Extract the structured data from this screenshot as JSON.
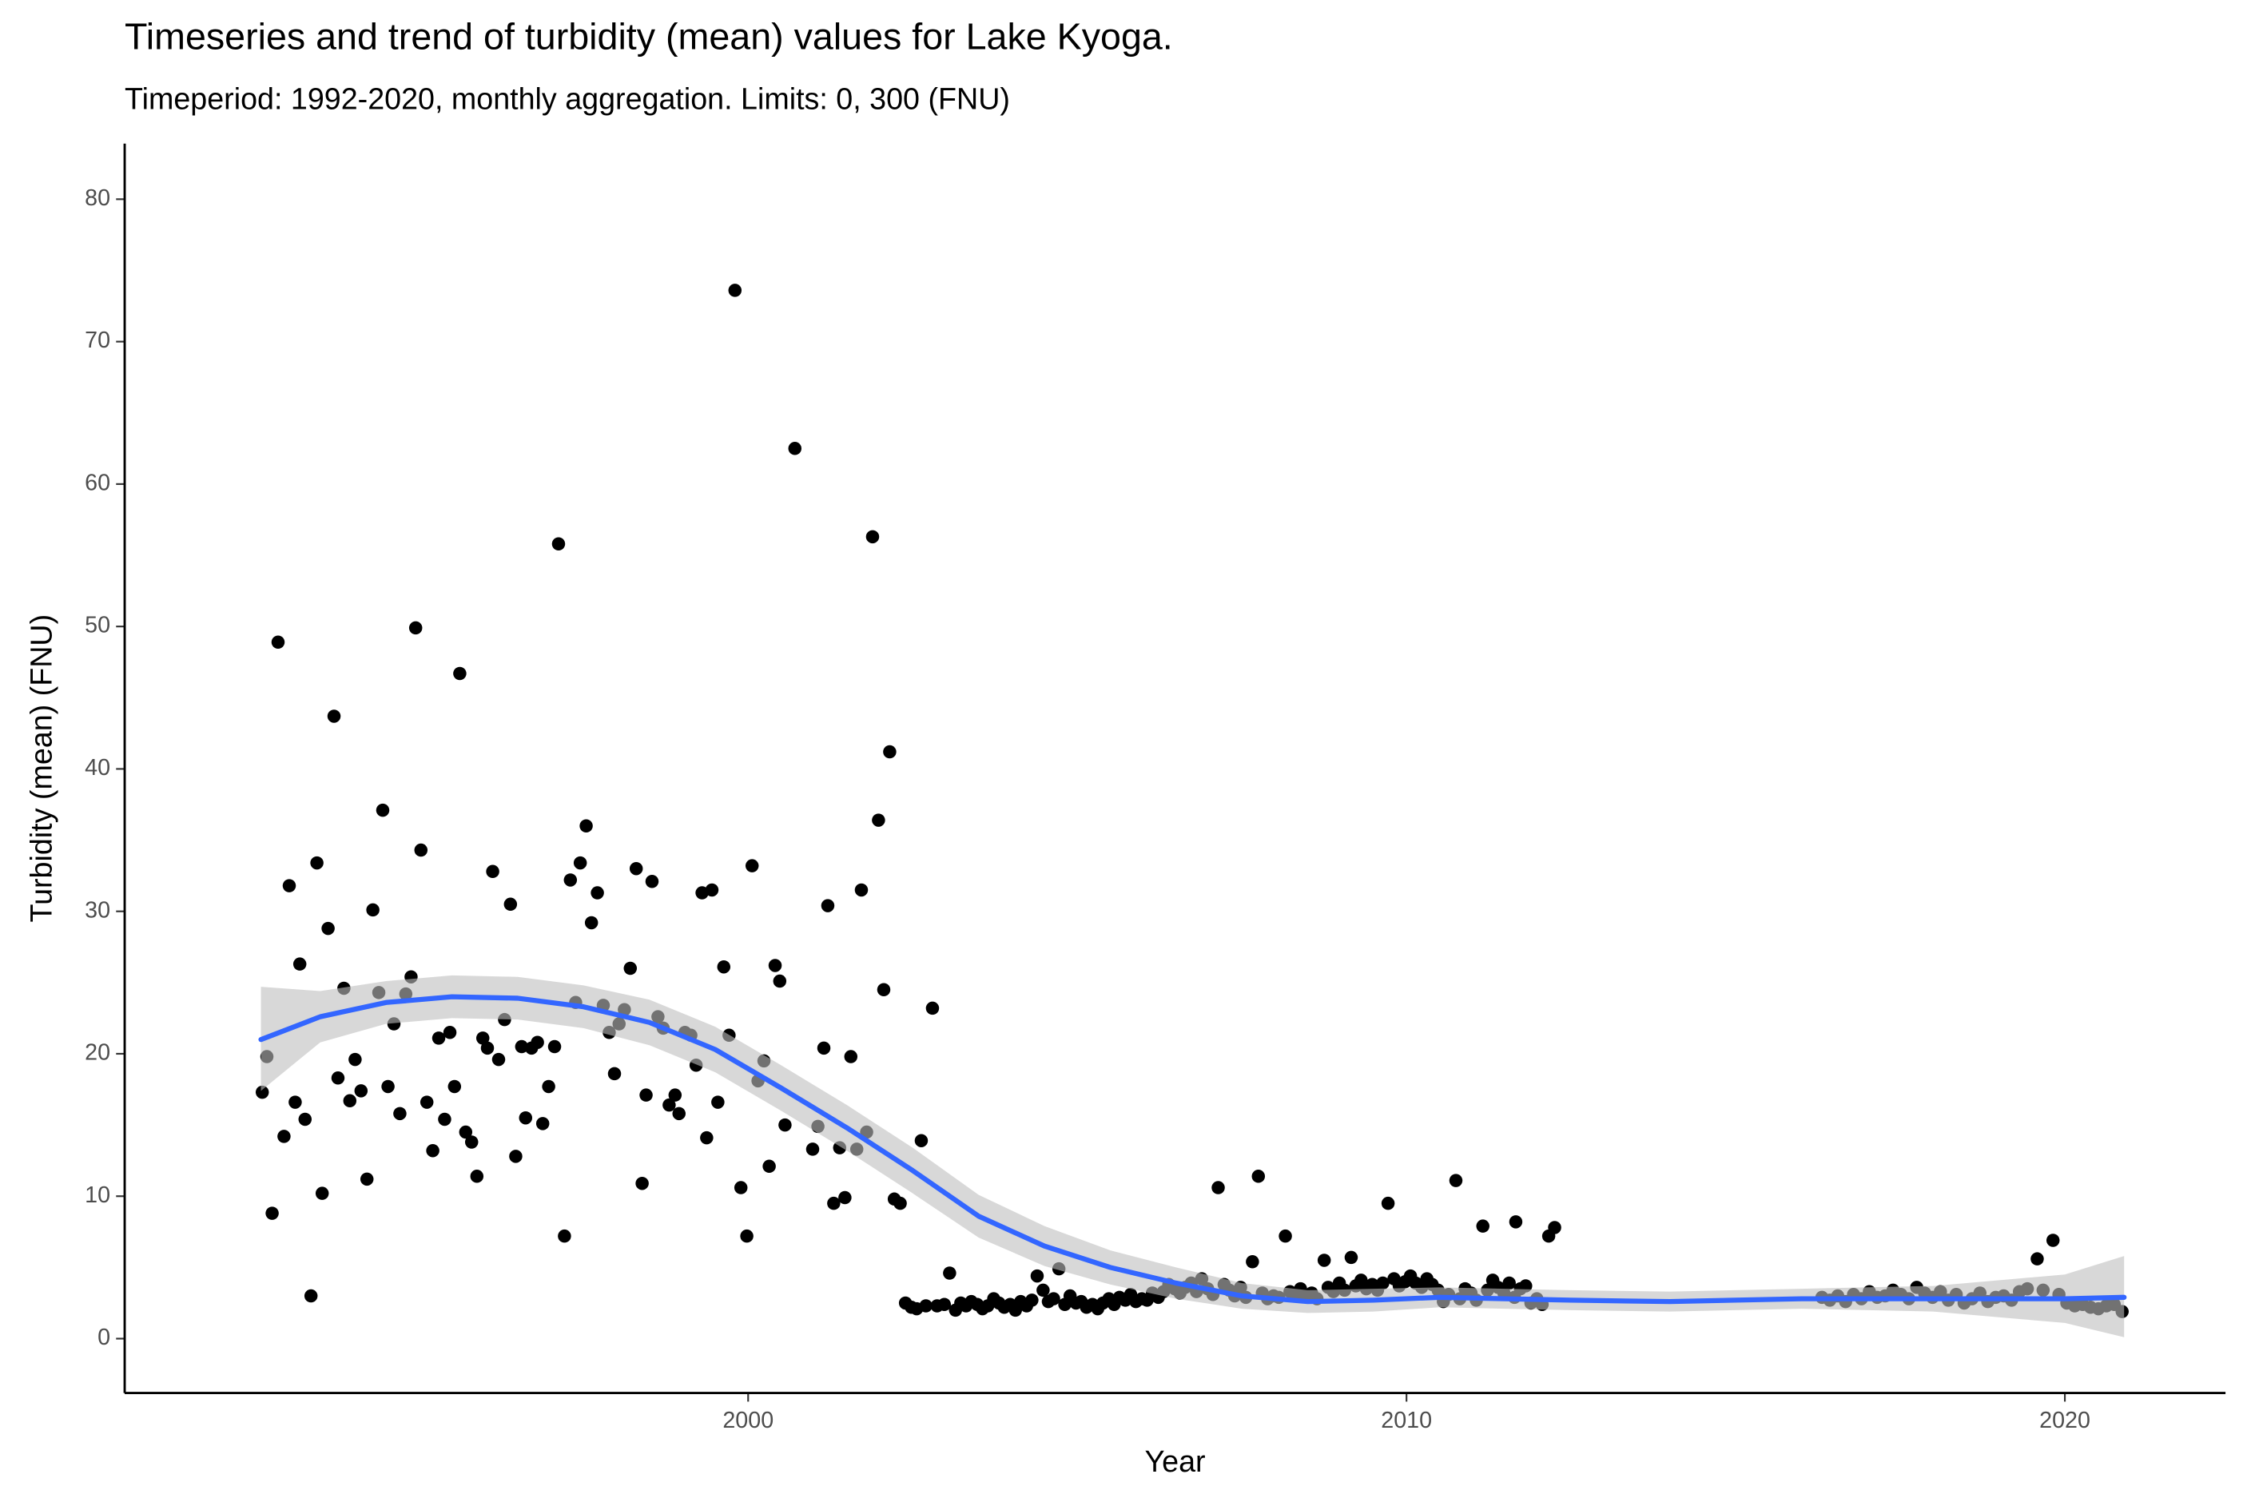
{
  "chart_data": {
    "type": "scatter",
    "title": "Timeseries and trend of turbidity (mean) values for Lake Kyoga.",
    "subtitle": "Timeperiod: 1992-2020, monthly aggregation. Limits: 0, 300 (FNU)",
    "x_label": "Year",
    "y_label": "Turbidity (mean) (FNU)",
    "xlim": [
      1990.53,
      2022.44
    ],
    "ylim": [
      -3.82,
      83.9
    ],
    "xticks": [
      2000,
      2010,
      2020
    ],
    "yticks": [
      0,
      10,
      20,
      30,
      40,
      50,
      60,
      70,
      80
    ],
    "grid": false,
    "series": [
      {
        "color": "#000000",
        "x": [
          1992.62,
          1992.69,
          1992.77,
          1992.86,
          1992.95,
          1993.03,
          1993.12,
          1993.19,
          1993.27,
          1993.36,
          1993.45,
          1993.53,
          1993.62,
          1993.71,
          1993.77,
          1993.86,
          1993.95,
          1994.03,
          1994.12,
          1994.21,
          1994.3,
          1994.39,
          1994.45,
          1994.53,
          1994.62,
          1994.71,
          1994.8,
          1994.88,
          1994.95,
          1995.03,
          1995.12,
          1995.21,
          1995.3,
          1995.39,
          1995.47,
          1995.54,
          1995.62,
          1995.71,
          1995.8,
          1995.88,
          1995.97,
          1996.04,
          1996.12,
          1996.21,
          1996.3,
          1996.39,
          1996.47,
          1996.56,
          1996.62,
          1996.71,
          1996.8,
          1996.88,
          1996.97,
          1997.06,
          1997.12,
          1997.21,
          1997.3,
          1997.38,
          1997.45,
          1997.54,
          1997.62,
          1997.71,
          1997.8,
          1997.89,
          1997.97,
          1998.04,
          1998.12,
          1998.21,
          1998.3,
          1998.39,
          1998.45,
          1998.54,
          1998.63,
          1998.71,
          1998.8,
          1998.89,
          1998.95,
          1999.04,
          1999.13,
          1999.21,
          1999.3,
          1999.37,
          1999.45,
          1999.54,
          1999.63,
          1999.71,
          1999.8,
          1999.89,
          1999.98,
          2000.06,
          2000.15,
          2000.24,
          2000.32,
          2000.41,
          2000.48,
          2000.56,
          2000.71,
          2000.98,
          2001.06,
          2001.15,
          2001.21,
          2001.3,
          2001.39,
          2001.47,
          2001.56,
          2001.65,
          2001.72,
          2001.8,
          2001.89,
          2001.98,
          2002.06,
          2002.15,
          2002.22,
          2002.31,
          2002.39,
          2002.48,
          2002.56,
          2002.63,
          2002.7,
          2002.8,
          2002.87,
          2002.98,
          2003.06,
          2003.15
        ],
        "values": [
          17.3,
          19.8,
          8.8,
          48.9,
          14.2,
          31.8,
          16.6,
          26.3,
          15.4,
          3.0,
          33.4,
          10.2,
          28.8,
          43.7,
          18.3,
          24.6,
          16.7,
          19.6,
          17.4,
          11.2,
          30.1,
          24.3,
          37.1,
          17.7,
          22.1,
          15.8,
          24.2,
          25.4,
          49.9,
          34.3,
          16.6,
          13.2,
          21.1,
          15.4,
          21.5,
          17.7,
          46.7,
          14.5,
          13.8,
          11.4,
          21.1,
          20.4,
          32.8,
          19.6,
          22.4,
          30.5,
          12.8,
          20.5,
          15.5,
          20.4,
          20.8,
          15.1,
          17.7,
          20.5,
          55.8,
          7.2,
          32.2,
          23.6,
          33.4,
          36.0,
          29.2,
          31.3,
          23.4,
          21.5,
          18.6,
          22.1,
          23.1,
          26.0,
          33.0,
          10.9,
          17.1,
          32.1,
          22.6,
          21.8,
          16.4,
          17.1,
          15.8,
          21.5,
          21.3,
          19.2,
          31.3,
          14.1,
          31.5,
          16.6,
          26.1,
          21.3,
          73.6,
          10.6,
          7.2,
          33.2,
          18.1,
          19.5,
          12.1,
          26.2,
          25.1,
          15.0,
          62.5,
          13.3,
          14.9,
          20.4,
          30.4,
          9.5,
          13.4,
          9.9,
          19.8,
          13.3,
          31.5,
          14.5,
          56.3,
          36.4,
          24.5,
          41.2,
          9.8,
          9.5,
          2.5,
          2.2,
          2.1,
          13.9,
          2.3,
          23.2,
          2.3,
          2.4,
          4.6,
          2.0
        ]
      },
      {
        "color": "#000000",
        "x": [
          2003.23,
          2003.31,
          2003.39,
          2003.48,
          2003.56,
          2003.64,
          2003.73,
          2003.81,
          2003.89,
          2003.98,
          2004.06,
          2004.14,
          2004.23,
          2004.31,
          2004.48,
          2004.56,
          2004.64,
          2004.81,
          2004.89,
          2004.98,
          2005.06,
          2005.14,
          2005.23,
          2005.31,
          2005.39,
          2005.48,
          2005.56,
          2005.64,
          2005.73,
          2005.81,
          2005.89,
          2005.98,
          2006.06,
          2006.14,
          2006.23,
          2006.31,
          2006.39,
          2006.48,
          2006.56,
          2006.64,
          2006.73,
          2006.81,
          2006.89,
          2006.98,
          2007.06,
          2007.23,
          2007.31,
          2007.39,
          2007.48,
          2007.56,
          2007.81,
          2007.89,
          2007.98,
          2008.06,
          2008.23,
          2008.31,
          2008.39,
          2008.48,
          2008.56,
          2008.64,
          2008.81,
          2008.89,
          2008.98,
          2009.06,
          2009.23,
          2009.31,
          2009.39,
          2009.48,
          2009.56,
          2009.64,
          2009.81,
          2009.89,
          2009.98,
          2010.06,
          2010.14,
          2010.23,
          2010.31,
          2010.39,
          2010.48,
          2010.56,
          2010.64,
          2010.81,
          2010.89,
          2010.98,
          2011.06,
          2011.23,
          2011.31,
          2011.39,
          2011.48,
          2011.56,
          2011.64,
          2011.73,
          2011.81,
          2011.89,
          2011.98,
          2012.06
        ],
        "values": [
          2.5,
          2.3,
          2.6,
          2.4,
          2.1,
          2.3,
          2.8,
          2.5,
          2.2,
          2.4,
          2.0,
          2.6,
          2.3,
          2.7,
          3.4,
          2.6,
          2.8,
          2.4,
          3.0,
          2.5,
          2.6,
          2.2,
          2.4,
          2.1,
          2.5,
          2.8,
          2.4,
          2.9,
          2.7,
          3.1,
          2.6,
          2.8,
          2.7,
          3.2,
          2.9,
          3.3,
          3.8,
          3.5,
          3.2,
          3.6,
          3.9,
          3.3,
          4.2,
          3.5,
          3.1,
          3.8,
          3.4,
          3.0,
          3.6,
          2.9,
          3.2,
          2.8,
          3.0,
          2.9,
          3.3,
          3.1,
          3.5,
          3.0,
          3.2,
          2.8,
          3.6,
          3.3,
          3.9,
          3.4,
          3.7,
          4.1,
          3.5,
          3.8,
          3.4,
          3.9,
          4.2,
          3.7,
          4.0,
          4.4,
          3.9,
          3.6,
          4.2,
          3.8,
          3.4,
          2.6,
          3.1,
          2.8,
          3.5,
          3.2,
          2.7,
          3.4,
          4.1,
          3.6,
          3.2,
          3.9,
          2.9,
          3.5,
          3.7,
          2.5,
          2.8,
          2.4
        ]
      },
      {
        "color": "#000000",
        "x": [
          2004.39,
          2004.72,
          2007.14,
          2007.66,
          2007.75,
          2008.16,
          2008.75,
          2009.16,
          2009.72,
          2010.75,
          2011.16,
          2011.66,
          2012.16,
          2012.25,
          2019.58,
          2019.82
        ],
        "values": [
          4.4,
          4.9,
          10.6,
          5.4,
          11.4,
          7.2,
          5.5,
          5.7,
          9.5,
          11.1,
          7.9,
          8.2,
          7.2,
          7.8,
          5.6,
          6.9
        ]
      },
      {
        "color": "#000000",
        "x": [
          2016.31,
          2016.43,
          2016.55,
          2016.67,
          2016.79,
          2016.91,
          2017.03,
          2017.15,
          2017.27,
          2017.39,
          2017.51,
          2017.63,
          2017.75,
          2017.87,
          2017.99,
          2018.11,
          2018.23,
          2018.35,
          2018.47,
          2018.59,
          2018.71,
          2018.83,
          2018.95,
          2019.07,
          2019.19,
          2019.31,
          2019.43,
          2019.67,
          2019.91,
          2020.03,
          2020.15,
          2020.27,
          2020.39,
          2020.51,
          2020.63,
          2020.75,
          2020.87
        ],
        "values": [
          2.9,
          2.7,
          3.0,
          2.6,
          3.1,
          2.8,
          3.3,
          2.9,
          3.0,
          3.4,
          3.1,
          2.8,
          3.6,
          3.2,
          2.9,
          3.3,
          2.7,
          3.1,
          2.5,
          2.8,
          3.2,
          2.6,
          2.9,
          3.0,
          2.7,
          3.3,
          3.5,
          3.4,
          3.1,
          2.5,
          2.3,
          2.4,
          2.2,
          2.1,
          2.3,
          2.4,
          1.9
        ]
      }
    ],
    "trend": {
      "color": "#3366ff",
      "band_color": "#bebebe",
      "x": [
        1992.6,
        1993.5,
        1994.5,
        1995.5,
        1996.5,
        1997.5,
        1998.5,
        1999.5,
        2000.5,
        2001.5,
        2002.5,
        2003.5,
        2004.5,
        2005.5,
        2006.5,
        2007.5,
        2008.5,
        2009.5,
        2010.5,
        2011.5,
        2012.5,
        2014,
        2016,
        2018,
        2020,
        2020.9
      ],
      "values": [
        21.0,
        22.6,
        23.6,
        24.0,
        23.9,
        23.3,
        22.2,
        20.3,
        17.6,
        14.8,
        11.8,
        8.6,
        6.5,
        5.0,
        3.9,
        3.0,
        2.6,
        2.7,
        2.9,
        2.8,
        2.7,
        2.6,
        2.8,
        2.8,
        2.8,
        2.9
      ],
      "lower": [
        17.4,
        20.8,
        22.1,
        22.5,
        22.4,
        21.8,
        20.6,
        18.7,
        16.0,
        13.2,
        10.2,
        7.1,
        5.1,
        3.8,
        2.8,
        2.1,
        1.8,
        1.9,
        2.2,
        2.1,
        2.0,
        1.9,
        2.1,
        1.9,
        1.1,
        0.1
      ],
      "upper": [
        24.7,
        24.4,
        25.1,
        25.5,
        25.4,
        24.8,
        23.8,
        21.9,
        19.2,
        16.4,
        13.4,
        10.1,
        7.9,
        6.2,
        5.0,
        3.9,
        3.4,
        3.5,
        3.6,
        3.5,
        3.4,
        3.3,
        3.5,
        3.7,
        4.5,
        5.8
      ]
    }
  }
}
